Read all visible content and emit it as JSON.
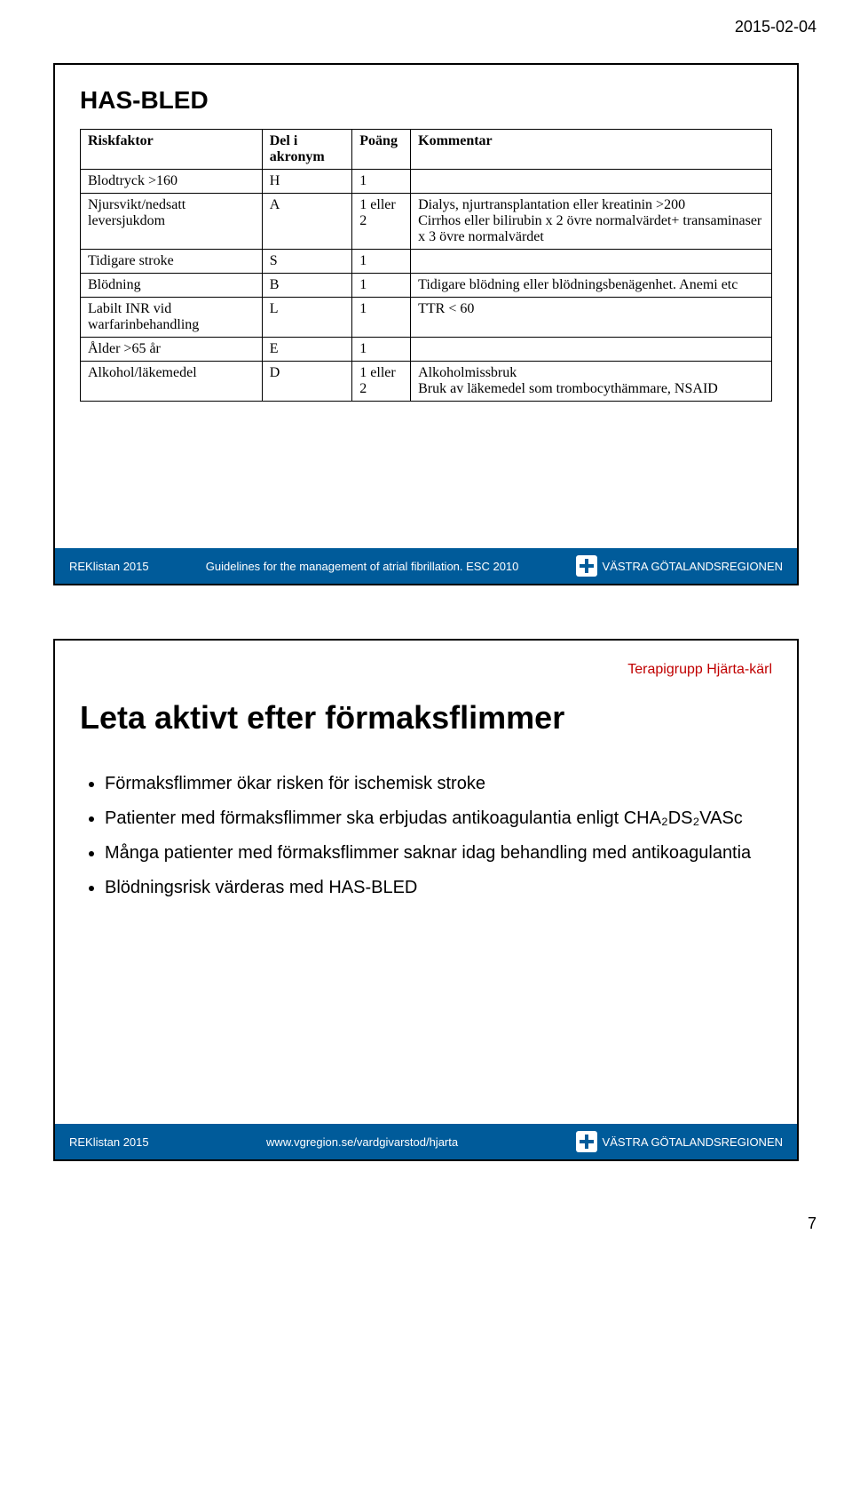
{
  "page": {
    "date": "2015-02-04",
    "number": "7"
  },
  "slide1": {
    "title": "HAS-BLED",
    "headers": [
      "Riskfaktor",
      "Del i akronym",
      "Poäng",
      "Kommentar"
    ],
    "rows": [
      {
        "c0": "Blodtryck >160",
        "c1": "H",
        "c2": "1",
        "c3": ""
      },
      {
        "c0": "Njursvikt/nedsatt leversjukdom",
        "c1": "A",
        "c2": "1 eller 2",
        "c3": "Dialys, njurtransplantation eller kreatinin >200\nCirrhos eller bilirubin x 2 övre normalvärdet+ transaminaser x 3 övre normalvärdet"
      },
      {
        "c0": "Tidigare stroke",
        "c1": "S",
        "c2": "1",
        "c3": ""
      },
      {
        "c0": "Blödning",
        "c1": "B",
        "c2": "1",
        "c3": "Tidigare blödning eller blödningsbenägenhet. Anemi etc"
      },
      {
        "c0": "Labilt INR vid warfarinbehandling",
        "c1": "L",
        "c2": "1",
        "c3": "TTR < 60"
      },
      {
        "c0": "Ålder >65 år",
        "c1": "E",
        "c2": "1",
        "c3": ""
      },
      {
        "c0": "Alkohol/läkemedel",
        "c1": "D",
        "c2": "1 eller 2",
        "c3": "Alkoholmissbruk\nBruk av läkemedel som trombocythämmare, NSAID"
      }
    ],
    "footer_left": "REKlistan 2015",
    "footer_center": "Guidelines for the management of atrial fibrillation. ESC 2010",
    "footer_logo_text": "VÄSTRA GÖTALANDSREGIONEN"
  },
  "slide2": {
    "tg_label": "Terapigrupp Hjärta-kärl",
    "title": "Leta aktivt efter förmaksflimmer",
    "bullets": [
      "Förmaksflimmer ökar risken för ischemisk stroke",
      "Patienter med förmaksflimmer ska erbjudas antikoagulantia enligt CHA₂DS₂VASc",
      "Många patienter med förmaksflimmer saknar idag behandling med antikoagulantia",
      "Blödningsrisk värderas med HAS-BLED"
    ],
    "footer_left": "REKlistan 2015",
    "footer_center": "www.vgregion.se/vardgivarstod/hjarta",
    "footer_logo_text": "VÄSTRA GÖTALANDSREGIONEN"
  }
}
